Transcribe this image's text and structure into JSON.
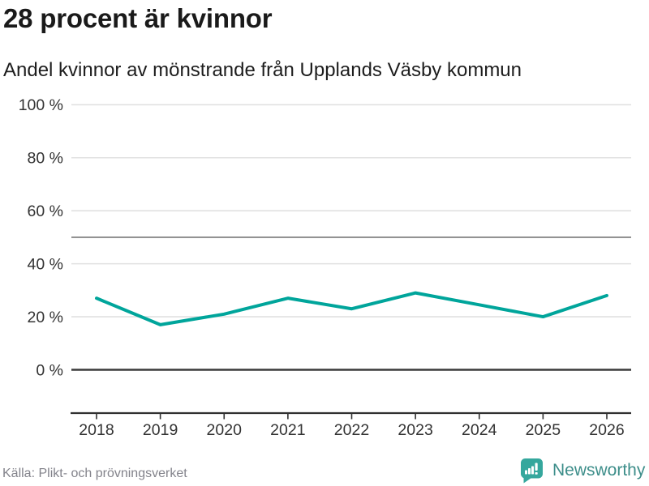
{
  "header": {
    "title": "28 procent är kvinnor",
    "subtitle": "Andel kvinnor av mönstrande från Upplands Väsby kommun"
  },
  "chart_data": {
    "type": "line",
    "title": "28 procent är kvinnor",
    "subtitle": "Andel kvinnor av mönstrande från Upplands Väsby kommun",
    "categories": [
      "2018",
      "2019",
      "2020",
      "2021",
      "2022",
      "2023",
      "2024",
      "2025",
      "2026"
    ],
    "series": [
      {
        "name": "Andel kvinnor av mönstrande",
        "values": [
          27,
          17,
          21,
          27,
          23,
          29,
          24.5,
          20,
          28
        ]
      }
    ],
    "unit": "%",
    "ylim": [
      0,
      100
    ],
    "y_ticks": [
      {
        "value": 0,
        "label": "0 %"
      },
      {
        "value": 20,
        "label": "20 %"
      },
      {
        "value": 40,
        "label": "40 %"
      },
      {
        "value": 60,
        "label": "60 %"
      },
      {
        "value": 80,
        "label": "80 %"
      },
      {
        "value": 100,
        "label": "100 %"
      }
    ],
    "reference_line": 50,
    "grid": "horizontal",
    "legend_position": "none",
    "line_color": "#00a59b"
  },
  "footer": {
    "source": "Källa: Plikt- och prövningsverket",
    "brand": "Newsworthy"
  },
  "colors": {
    "accent_teal": "#00a59b",
    "grid_light": "#e1e1e1",
    "grid_mid": "#767676",
    "zero_line": "#3b3b3b",
    "axis_line": "#303030",
    "tick_text": "#333333",
    "title_text": "#1a1a1a",
    "muted_text": "#83838b",
    "logo_icon": "#35a79d",
    "logo_text": "#3d8e8a"
  }
}
